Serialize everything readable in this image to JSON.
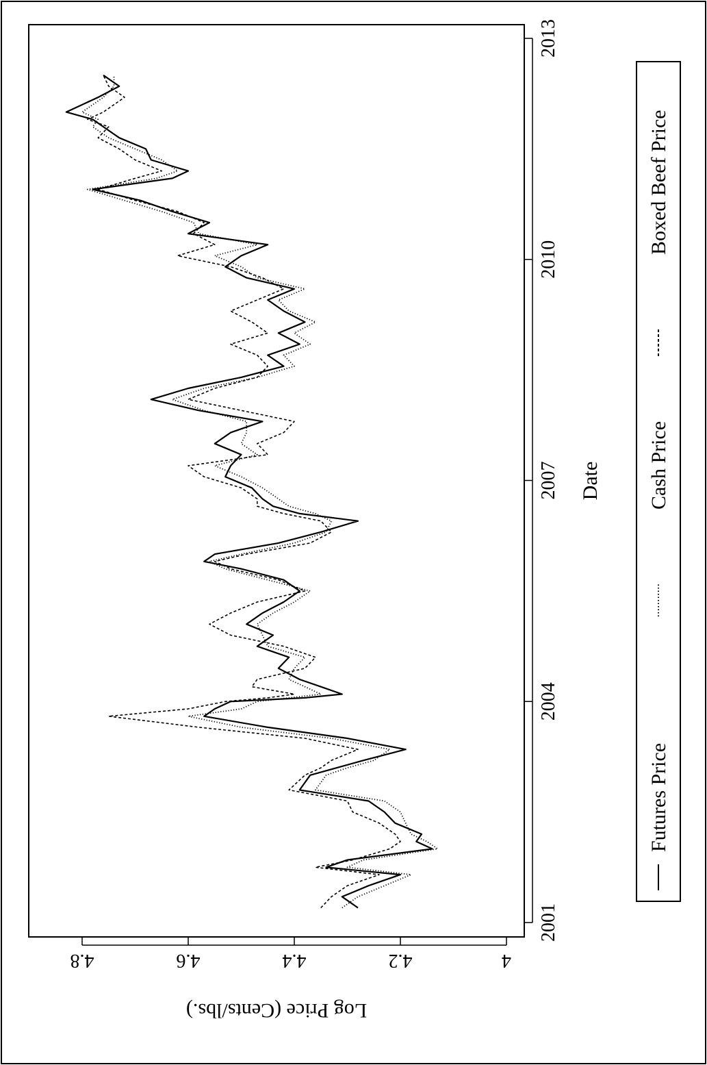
{
  "chart_data": {
    "type": "line",
    "xlabel": "Date",
    "ylabel": "Log Price (Cents/lbs.)",
    "x_ticks": [
      "2001",
      "2004",
      "2007",
      "2010",
      "2013"
    ],
    "y_ticks": [
      "4",
      "4.2",
      "4.4",
      "4.6",
      "4.8"
    ],
    "xlim": [
      2001.0,
      2013.0
    ],
    "ylim": [
      4.0,
      4.85
    ],
    "grid": false,
    "legend_placement": "bottom",
    "series": [
      {
        "name": "Futures Price",
        "linestyle": "solid",
        "x": [
          2001.2,
          2001.35,
          2001.5,
          2001.65,
          2001.75,
          2001.85,
          2002.0,
          2002.1,
          2002.2,
          2002.35,
          2002.5,
          2002.65,
          2002.8,
          2003.0,
          2003.1,
          2003.2,
          2003.35,
          2003.5,
          2003.65,
          2003.8,
          2003.9,
          2004.0,
          2004.05,
          2004.1,
          2004.2,
          2004.3,
          2004.45,
          2004.6,
          2004.75,
          2004.9,
          2005.05,
          2005.2,
          2005.35,
          2005.5,
          2005.65,
          2005.8,
          2005.9,
          2006.0,
          2006.15,
          2006.3,
          2006.45,
          2006.55,
          2006.65,
          2006.75,
          2006.9,
          2007.05,
          2007.2,
          2007.35,
          2007.5,
          2007.65,
          2007.8,
          2007.95,
          2008.1,
          2008.25,
          2008.4,
          2008.55,
          2008.7,
          2008.85,
          2009.0,
          2009.15,
          2009.3,
          2009.45,
          2009.6,
          2009.75,
          2009.9,
          2010.05,
          2010.2,
          2010.35,
          2010.5,
          2010.65,
          2010.8,
          2010.95,
          2011.1,
          2011.2,
          2011.35,
          2011.5,
          2011.65,
          2011.8,
          2011.9,
          2012.0,
          2012.2,
          2012.35,
          2012.5
        ],
        "y": [
          4.28,
          4.31,
          4.26,
          4.2,
          4.34,
          4.3,
          4.14,
          4.17,
          4.16,
          4.21,
          4.23,
          4.26,
          4.39,
          4.37,
          4.32,
          4.27,
          4.19,
          4.3,
          4.45,
          4.57,
          4.55,
          4.52,
          4.38,
          4.31,
          4.35,
          4.39,
          4.43,
          4.41,
          4.47,
          4.44,
          4.49,
          4.46,
          4.42,
          4.39,
          4.42,
          4.5,
          4.57,
          4.55,
          4.43,
          4.35,
          4.28,
          4.39,
          4.44,
          4.46,
          4.48,
          4.53,
          4.52,
          4.5,
          4.55,
          4.52,
          4.46,
          4.58,
          4.67,
          4.6,
          4.5,
          4.42,
          4.45,
          4.39,
          4.43,
          4.38,
          4.42,
          4.45,
          4.4,
          4.49,
          4.53,
          4.5,
          4.45,
          4.6,
          4.56,
          4.63,
          4.69,
          4.78,
          4.63,
          4.6,
          4.67,
          4.68,
          4.73,
          4.76,
          4.78,
          4.83,
          4.77,
          4.73,
          4.76
        ]
      },
      {
        "name": "Cash Price",
        "linestyle": "dotted",
        "x": [
          2001.2,
          2001.35,
          2001.5,
          2001.65,
          2001.75,
          2001.85,
          2002.0,
          2002.1,
          2002.2,
          2002.35,
          2002.5,
          2002.65,
          2002.8,
          2003.0,
          2003.1,
          2003.2,
          2003.35,
          2003.5,
          2003.65,
          2003.8,
          2003.9,
          2004.0,
          2004.05,
          2004.1,
          2004.2,
          2004.3,
          2004.45,
          2004.6,
          2004.75,
          2004.9,
          2005.05,
          2005.2,
          2005.35,
          2005.5,
          2005.65,
          2005.8,
          2005.9,
          2006.0,
          2006.15,
          2006.3,
          2006.45,
          2006.55,
          2006.65,
          2006.75,
          2006.9,
          2007.05,
          2007.2,
          2007.35,
          2007.5,
          2007.65,
          2007.8,
          2007.95,
          2008.1,
          2008.25,
          2008.4,
          2008.55,
          2008.7,
          2008.85,
          2009.0,
          2009.15,
          2009.3,
          2009.45,
          2009.6,
          2009.75,
          2009.9,
          2010.05,
          2010.2,
          2010.35,
          2010.5,
          2010.65,
          2010.8,
          2010.95,
          2011.1,
          2011.2,
          2011.35,
          2011.5,
          2011.65,
          2011.8,
          2011.9,
          2012.0,
          2012.2,
          2012.35,
          2012.5
        ],
        "y": [
          4.31,
          4.28,
          4.23,
          4.18,
          4.3,
          4.27,
          4.13,
          4.15,
          4.18,
          4.19,
          4.2,
          4.23,
          4.36,
          4.34,
          4.3,
          4.25,
          4.22,
          4.33,
          4.5,
          4.6,
          4.5,
          4.47,
          4.41,
          4.35,
          4.38,
          4.41,
          4.4,
          4.38,
          4.45,
          4.46,
          4.47,
          4.44,
          4.4,
          4.37,
          4.45,
          4.53,
          4.56,
          4.5,
          4.4,
          4.34,
          4.33,
          4.36,
          4.41,
          4.43,
          4.46,
          4.5,
          4.55,
          4.47,
          4.5,
          4.49,
          4.49,
          4.57,
          4.63,
          4.57,
          4.47,
          4.4,
          4.42,
          4.37,
          4.4,
          4.36,
          4.41,
          4.43,
          4.38,
          4.47,
          4.5,
          4.55,
          4.47,
          4.58,
          4.59,
          4.65,
          4.72,
          4.79,
          4.66,
          4.62,
          4.65,
          4.7,
          4.75,
          4.78,
          4.77,
          4.8,
          4.76,
          4.74,
          4.74
        ]
      },
      {
        "name": "Boxed Beef Price",
        "linestyle": "dashed",
        "x": [
          2001.2,
          2001.35,
          2001.5,
          2001.65,
          2001.75,
          2001.85,
          2002.0,
          2002.1,
          2002.2,
          2002.35,
          2002.5,
          2002.65,
          2002.8,
          2003.0,
          2003.1,
          2003.2,
          2003.35,
          2003.5,
          2003.65,
          2003.8,
          2003.9,
          2004.0,
          2004.05,
          2004.1,
          2004.2,
          2004.3,
          2004.45,
          2004.6,
          2004.75,
          2004.9,
          2005.05,
          2005.2,
          2005.35,
          2005.5,
          2005.65,
          2005.8,
          2005.9,
          2006.0,
          2006.15,
          2006.3,
          2006.45,
          2006.55,
          2006.65,
          2006.75,
          2006.9,
          2007.05,
          2007.2,
          2007.35,
          2007.5,
          2007.65,
          2007.8,
          2007.95,
          2008.1,
          2008.25,
          2008.4,
          2008.55,
          2008.7,
          2008.85,
          2009.0,
          2009.15,
          2009.3,
          2009.45,
          2009.6,
          2009.75,
          2009.9,
          2010.05,
          2010.2,
          2010.35,
          2010.5,
          2010.65,
          2010.8,
          2010.95,
          2011.1,
          2011.2,
          2011.35,
          2011.5,
          2011.65,
          2011.8,
          2011.9,
          2012.0,
          2012.2,
          2012.35,
          2012.5
        ],
        "y": [
          4.35,
          4.33,
          4.3,
          4.24,
          4.36,
          4.29,
          4.22,
          4.2,
          4.21,
          4.24,
          4.29,
          4.3,
          4.41,
          4.38,
          4.35,
          4.33,
          4.28,
          4.38,
          4.58,
          4.75,
          4.6,
          4.53,
          4.45,
          4.4,
          4.48,
          4.47,
          4.38,
          4.36,
          4.42,
          4.52,
          4.56,
          4.52,
          4.47,
          4.38,
          4.43,
          4.52,
          4.55,
          4.49,
          4.37,
          4.33,
          4.35,
          4.42,
          4.47,
          4.47,
          4.5,
          4.57,
          4.6,
          4.45,
          4.47,
          4.42,
          4.4,
          4.5,
          4.6,
          4.55,
          4.47,
          4.45,
          4.47,
          4.52,
          4.45,
          4.48,
          4.52,
          4.47,
          4.42,
          4.46,
          4.52,
          4.62,
          4.55,
          4.59,
          4.57,
          4.62,
          4.7,
          4.77,
          4.7,
          4.65,
          4.7,
          4.73,
          4.77,
          4.75,
          4.79,
          4.76,
          4.72,
          4.75,
          4.76
        ]
      }
    ]
  }
}
